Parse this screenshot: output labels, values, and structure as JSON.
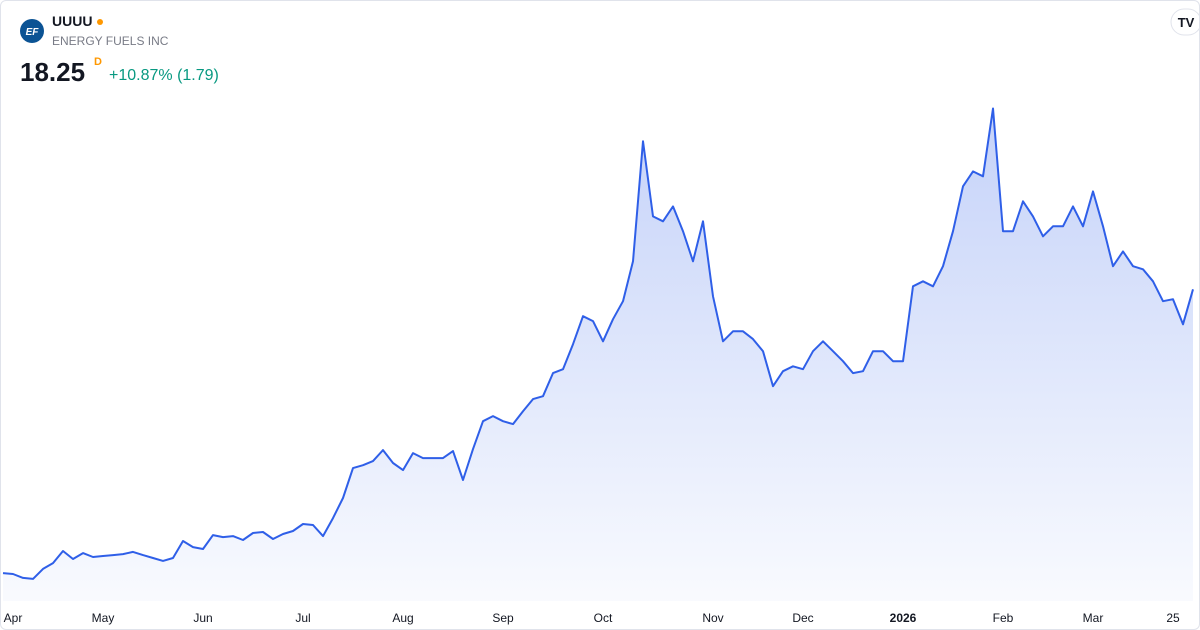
{
  "header": {
    "logo": "EF",
    "symbol": "UUUU",
    "company": "ENERGY FUELS INC",
    "price": "18.25",
    "session": "D",
    "change": "+10.87%",
    "change_abs": "(1.79)"
  },
  "chart_data": {
    "type": "area",
    "color": "#2f5fe8",
    "categories": [
      null,
      "Apr",
      null,
      null,
      null,
      null,
      null,
      null,
      null,
      null,
      "May",
      null,
      null,
      null,
      null,
      null,
      null,
      null,
      null,
      null,
      "Jun",
      null,
      null,
      null,
      null,
      null,
      null,
      null,
      null,
      null,
      "Jul",
      null,
      null,
      null,
      null,
      null,
      null,
      null,
      null,
      null,
      "Aug",
      null,
      null,
      null,
      null,
      null,
      null,
      null,
      null,
      null,
      "Sep",
      null,
      null,
      null,
      null,
      null,
      null,
      null,
      null,
      null,
      "Oct",
      null,
      null,
      null,
      null,
      null,
      null,
      null,
      null,
      null,
      null,
      "Nov",
      null,
      null,
      null,
      null,
      null,
      null,
      null,
      null,
      "Dec",
      null,
      null,
      null,
      null,
      null,
      null,
      null,
      null,
      null,
      "2026",
      null,
      null,
      null,
      null,
      null,
      null,
      null,
      null,
      null,
      "Feb",
      null,
      null,
      null,
      null,
      null,
      null,
      null,
      null,
      "Mar",
      null,
      null,
      null,
      null,
      null,
      null,
      null,
      "25",
      null,
      null
    ],
    "values": [
      3.73,
      3.68,
      3.48,
      3.43,
      3.94,
      4.24,
      4.86,
      4.45,
      4.75,
      4.55,
      4.6,
      4.65,
      4.7,
      4.81,
      4.65,
      4.5,
      4.35,
      4.5,
      5.37,
      5.06,
      4.96,
      5.67,
      5.57,
      5.62,
      5.42,
      5.78,
      5.83,
      5.47,
      5.73,
      5.88,
      6.24,
      6.19,
      5.62,
      6.54,
      7.57,
      9.1,
      9.25,
      9.46,
      10.02,
      9.36,
      9.0,
      9.87,
      9.61,
      9.61,
      9.61,
      9.97,
      8.49,
      10.07,
      11.5,
      11.76,
      11.5,
      11.35,
      12.01,
      12.63,
      12.78,
      13.96,
      14.16,
      15.44,
      16.87,
      16.62,
      15.59,
      16.72,
      17.64,
      19.68,
      25.82,
      21.98,
      21.73,
      22.49,
      21.22,
      19.68,
      21.73,
      17.89,
      15.59,
      16.1,
      16.1,
      15.7,
      15.08,
      13.29,
      14.06,
      14.31,
      14.16,
      15.08,
      15.59,
      15.08,
      14.57,
      13.96,
      14.06,
      15.08,
      15.08,
      14.57,
      14.57,
      18.4,
      18.66,
      18.4,
      19.43,
      21.22,
      23.52,
      24.28,
      24.03,
      27.5,
      21.22,
      21.22,
      22.75,
      21.98,
      20.96,
      21.47,
      21.47,
      22.49,
      21.47,
      23.26,
      21.47,
      19.43,
      20.19,
      19.43,
      19.27,
      18.66,
      17.64,
      17.74,
      16.46,
      18.25
    ],
    "ylim": [
      2.3,
      33
    ]
  }
}
